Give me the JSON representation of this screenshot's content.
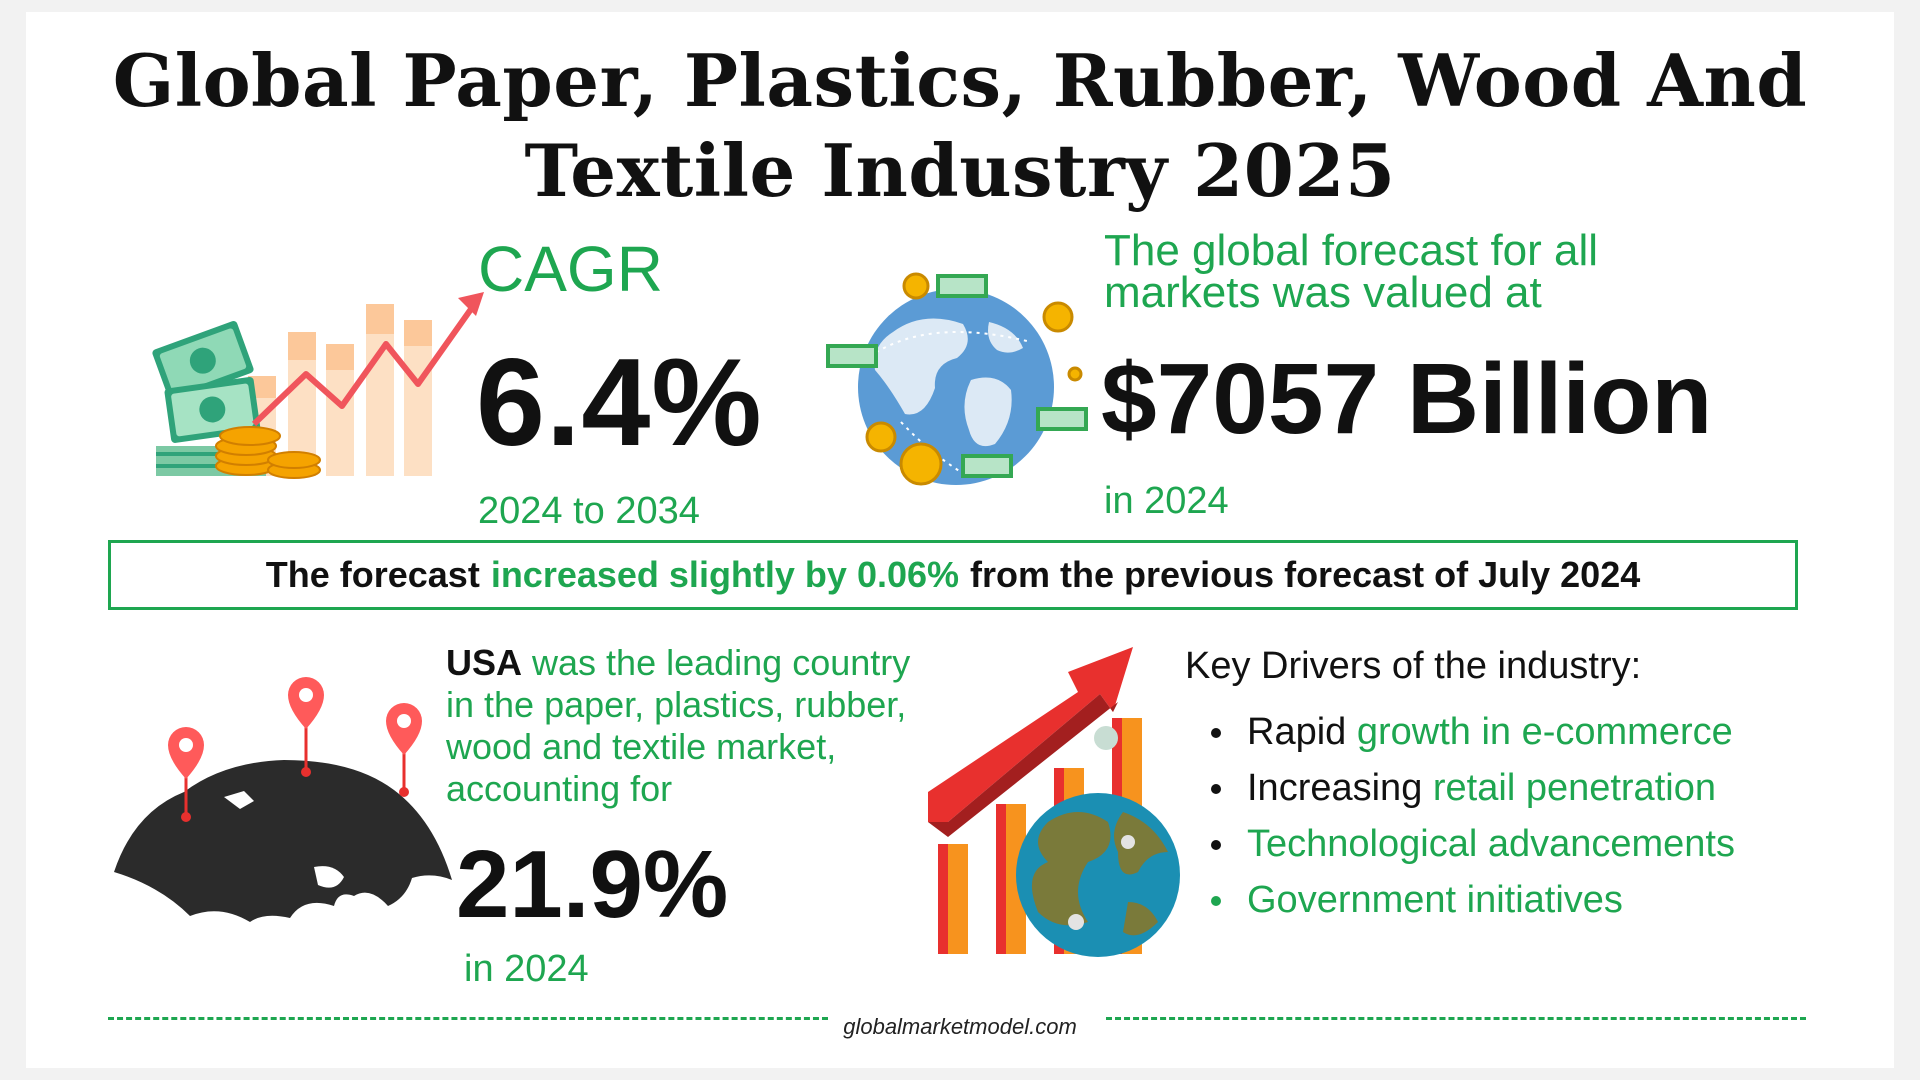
{
  "title_lines": [
    "Global Paper, Plastics, Rubber, Wood And",
    "Textile Industry 2025"
  ],
  "cagr": {
    "label": "CAGR",
    "value": "6.4%",
    "period": "2024 to 2034"
  },
  "forecast": {
    "intro_lines": [
      "The global forecast for all",
      "markets was valued at"
    ],
    "value": "$7057 Billion",
    "year": "in 2024"
  },
  "banner": {
    "prefix": "The forecast",
    "highlight": "increased slightly by 0.06%",
    "suffix": "from the previous forecast of July 2024"
  },
  "leading_country": {
    "country": "USA",
    "text_lines": [
      " was the leading country",
      "in the paper, plastics, rubber,",
      "wood and textile market,",
      "accounting for"
    ],
    "share": "21.9%",
    "year": "in 2024"
  },
  "drivers": {
    "title": "Key Drivers of the industry:",
    "items": [
      {
        "plain": "Rapid ",
        "green": "growth in e-commerce"
      },
      {
        "plain": "Increasing ",
        "green": "retail penetration"
      },
      {
        "plain": "",
        "green": "Technological advancements"
      },
      {
        "plain": "",
        "green": "Government initiatives"
      }
    ]
  },
  "footer": {
    "url": "globalmarketmodel.com"
  },
  "icons": [
    "money-growth-chart-icon",
    "globe-money-icon",
    "world-map-pins-icon",
    "growth-chart-globe-icon"
  ],
  "colors": {
    "accent_green": "#1ea650",
    "text_dark": "#111111",
    "arrow_red": "#e8302e",
    "bar_orange": "#f7931e"
  }
}
